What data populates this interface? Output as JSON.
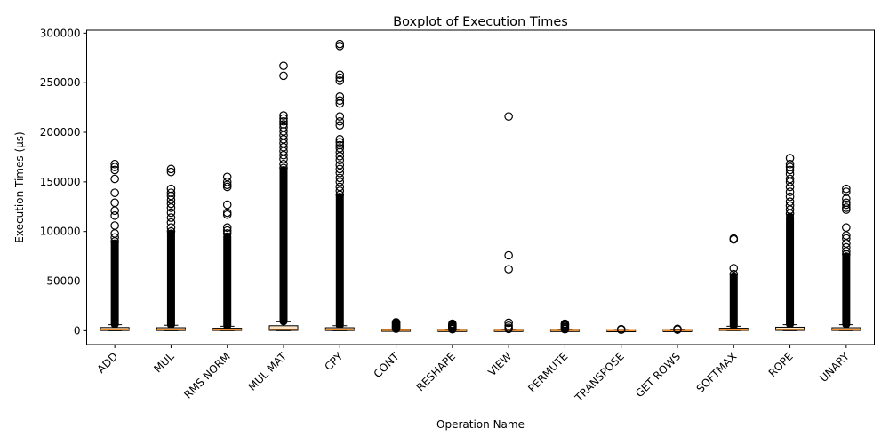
{
  "chart_data": {
    "type": "box",
    "title": "Boxplot of Execution Times",
    "xlabel": "Operation Name",
    "ylabel": "Execution Times (µs)",
    "ylim": [
      -14000,
      303000
    ],
    "yticks": [
      0,
      50000,
      100000,
      150000,
      200000,
      250000,
      300000
    ],
    "ytick_labels": [
      "0",
      "50000",
      "100000",
      "150000",
      "200000",
      "250000",
      "300000"
    ],
    "grid": false,
    "colors": {
      "box_fill": "#fce4c4",
      "median": "#f28e2b",
      "outlier": "#000000",
      "axes": "#000000"
    },
    "categories": [
      "ADD",
      "MUL",
      "RMS NORM",
      "MUL MAT",
      "CPY",
      "CONT",
      "RESHAPE",
      "VIEW",
      "PERMUTE",
      "TRANSPOSE",
      "GET ROWS",
      "SOFTMAX",
      "ROPE",
      "UNARY"
    ],
    "boxes": [
      {
        "name": "ADD",
        "q1": 200,
        "median": 1000,
        "q3": 3200,
        "whisker_low": 0,
        "whisker_high": 6000,
        "outliers": [
          168000,
          165000,
          162000,
          153000,
          139000,
          129000,
          121000,
          116000,
          106000,
          98000,
          94000,
          90000
        ],
        "outlier_band": [
          6500,
          88000
        ]
      },
      {
        "name": "MUL",
        "q1": 200,
        "median": 1000,
        "q3": 3000,
        "whisker_low": 0,
        "whisker_high": 5500,
        "outliers": [
          163000,
          160000,
          143000,
          139000,
          136000,
          132000,
          128000,
          124000,
          119000,
          114000,
          109000,
          104000,
          100000
        ],
        "outlier_band": [
          6000,
          98000
        ]
      },
      {
        "name": "RMS NORM",
        "q1": 200,
        "median": 900,
        "q3": 2500,
        "whisker_low": 0,
        "whisker_high": 4500,
        "outliers": [
          155000,
          150000,
          147000,
          145000,
          127000,
          119000,
          117000,
          104000,
          101000,
          98000
        ],
        "outlier_band": [
          5000,
          95000
        ]
      },
      {
        "name": "MUL MAT",
        "q1": 300,
        "median": 1500,
        "q3": 5000,
        "whisker_low": 0,
        "whisker_high": 9000,
        "outliers": [
          267000,
          257000,
          217000,
          214000,
          211000,
          208000,
          205000,
          201000,
          197000,
          193000,
          189000,
          185000,
          181000,
          177000,
          173000,
          168000,
          164000
        ],
        "outlier_band": [
          9500,
          162000
        ]
      },
      {
        "name": "CPY",
        "q1": 200,
        "median": 1000,
        "q3": 3000,
        "whisker_low": 0,
        "whisker_high": 5000,
        "outliers": [
          289000,
          287000,
          258000,
          255000,
          252000,
          236000,
          232000,
          229000,
          216000,
          211000,
          207000,
          193000,
          190000,
          187000,
          184000,
          180000,
          176000,
          172000,
          167000,
          163000,
          159000,
          154000,
          150000,
          145000,
          141000,
          137000
        ],
        "outlier_band": [
          5500,
          135000
        ]
      },
      {
        "name": "CONT",
        "q1": 0,
        "median": 300,
        "q3": 700,
        "whisker_low": 0,
        "whisker_high": 1500,
        "outliers": [
          8500,
          7800,
          7000,
          6200,
          5500,
          4800,
          4000,
          3300,
          2600,
          2000
        ],
        "outlier_band": null
      },
      {
        "name": "RESHAPE",
        "q1": 0,
        "median": 200,
        "q3": 500,
        "whisker_low": 0,
        "whisker_high": 1000,
        "outliers": [
          7000,
          6200,
          5400,
          4600,
          3800,
          3000,
          2200,
          1500
        ],
        "outlier_band": null
      },
      {
        "name": "VIEW",
        "q1": 0,
        "median": 200,
        "q3": 500,
        "whisker_low": 0,
        "whisker_high": 1000,
        "outliers": [
          216000,
          76000,
          62000,
          8000,
          5000,
          3000,
          1800
        ],
        "outlier_band": null
      },
      {
        "name": "PERMUTE",
        "q1": 0,
        "median": 200,
        "q3": 500,
        "whisker_low": 0,
        "whisker_high": 1000,
        "outliers": [
          7000,
          6000,
          5000,
          4000,
          3000,
          2000,
          1500
        ],
        "outlier_band": null
      },
      {
        "name": "TRANSPOSE",
        "q1": 0,
        "median": 100,
        "q3": 300,
        "whisker_low": 0,
        "whisker_high": 600,
        "outliers": [
          1500,
          1000
        ],
        "outlier_band": null
      },
      {
        "name": "GET ROWS",
        "q1": 0,
        "median": 100,
        "q3": 400,
        "whisker_low": 0,
        "whisker_high": 800,
        "outliers": [
          1800,
          1400,
          1100
        ],
        "outlier_band": null
      },
      {
        "name": "SOFTMAX",
        "q1": 200,
        "median": 800,
        "q3": 2500,
        "whisker_low": 0,
        "whisker_high": 4500,
        "outliers": [
          93000,
          92000,
          63000,
          57000
        ],
        "outlier_band": [
          5000,
          55000
        ]
      },
      {
        "name": "ROPE",
        "q1": 300,
        "median": 1200,
        "q3": 3500,
        "whisker_low": 0,
        "whisker_high": 6000,
        "outliers": [
          174000,
          168000,
          165000,
          162000,
          158000,
          153000,
          150000,
          145000,
          140000,
          135000,
          130000,
          126000,
          122000,
          118000
        ],
        "outlier_band": [
          6500,
          115000
        ]
      },
      {
        "name": "UNARY",
        "q1": 200,
        "median": 900,
        "q3": 3000,
        "whisker_low": 0,
        "whisker_high": 6000,
        "outliers": [
          143000,
          140000,
          133000,
          129000,
          127000,
          124000,
          122000,
          104000,
          96000,
          93000,
          88000,
          84000,
          80000,
          77000
        ],
        "outlier_band": [
          6500,
          75000
        ]
      }
    ]
  }
}
